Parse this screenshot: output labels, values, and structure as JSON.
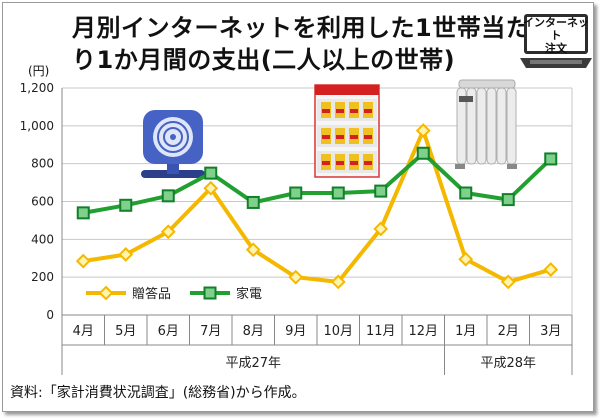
{
  "title_line1": "月別インターネットを利用した1世帯当た",
  "title_line2": "り1か月間の支出(二人以上の世帯)",
  "unit": "(円)",
  "badge": {
    "line1": "インターネット",
    "line2": "注文"
  },
  "source": "資料:「家計消費状況調査」(総務省)から作成。",
  "colors": {
    "gift": "#f5b800",
    "appliance": "#21a030",
    "grid": "#c8c8c8",
    "axis": "#888888"
  },
  "icons": [
    "desk-fan-icon",
    "gift-box-icon",
    "oil-heater-icon",
    "laptop-icon"
  ],
  "chart_data": {
    "type": "line",
    "categories": [
      "4月",
      "5月",
      "6月",
      "7月",
      "8月",
      "9月",
      "10月",
      "11月",
      "12月",
      "1月",
      "2月",
      "3月"
    ],
    "year_groups": [
      {
        "label": "平成27年",
        "span": 9
      },
      {
        "label": "平成28年",
        "span": 3
      }
    ],
    "yticks": [
      "0",
      "200",
      "400",
      "600",
      "800",
      "1,000",
      "1,200"
    ],
    "ylim": [
      0,
      1200
    ],
    "grid": true,
    "legend_position": "bottom-left",
    "series": [
      {
        "name": "贈答品",
        "marker": "diamond",
        "values": [
          285,
          320,
          440,
          670,
          345,
          200,
          175,
          455,
          975,
          295,
          175,
          240
        ]
      },
      {
        "name": "家電",
        "marker": "square",
        "values": [
          540,
          580,
          630,
          750,
          595,
          645,
          645,
          655,
          855,
          645,
          610,
          825
        ]
      }
    ]
  }
}
